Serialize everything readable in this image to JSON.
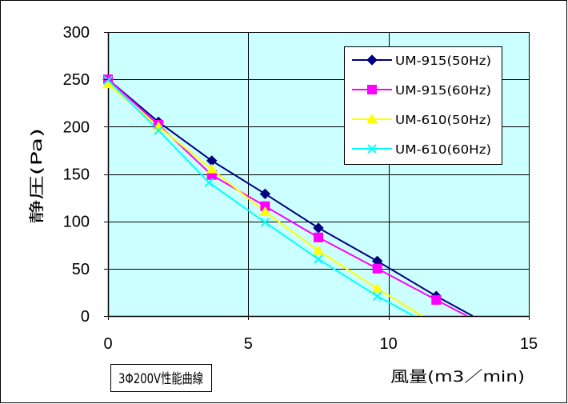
{
  "chart_data": {
    "type": "line",
    "title": "",
    "annotation": "3Φ200V性能曲線",
    "xlabel": "風量(m3／min)",
    "ylabel": "静圧(Pa)",
    "xlim": [
      0,
      15
    ],
    "ylim": [
      0,
      300
    ],
    "xticks": [
      0,
      5,
      10,
      15
    ],
    "yticks": [
      0,
      50,
      100,
      150,
      200,
      250,
      300
    ],
    "grid": true,
    "legend_position": "top-right",
    "plot_background": "#CCFFFF",
    "series": [
      {
        "name": "UM-915(50Hz)",
        "color": "#000080",
        "marker": "diamond",
        "x": [
          0,
          1.8,
          3.7,
          5.6,
          7.5,
          9.6,
          11.7,
          13.0
        ],
        "y": [
          250,
          205,
          164,
          129,
          93,
          58,
          21,
          0
        ]
      },
      {
        "name": "UM-915(60Hz)",
        "color": "#FF00FF",
        "marker": "square",
        "x": [
          0,
          1.8,
          3.7,
          5.6,
          7.5,
          9.6,
          11.7,
          12.8
        ],
        "y": [
          250,
          202,
          149,
          116,
          83,
          50,
          17,
          0
        ]
      },
      {
        "name": "UM-610(50Hz)",
        "color": "#FFFF00",
        "marker": "triangle",
        "x": [
          0,
          1.8,
          3.7,
          5.6,
          7.5,
          9.6,
          11.2
        ],
        "y": [
          245,
          200,
          155,
          110,
          69,
          29,
          0
        ]
      },
      {
        "name": "UM-610(60Hz)",
        "color": "#00FFFF",
        "marker": "x",
        "x": [
          0,
          1.8,
          3.6,
          5.6,
          7.5,
          9.6,
          10.9
        ],
        "y": [
          249,
          196,
          141,
          99,
          60,
          21,
          0
        ]
      }
    ]
  }
}
